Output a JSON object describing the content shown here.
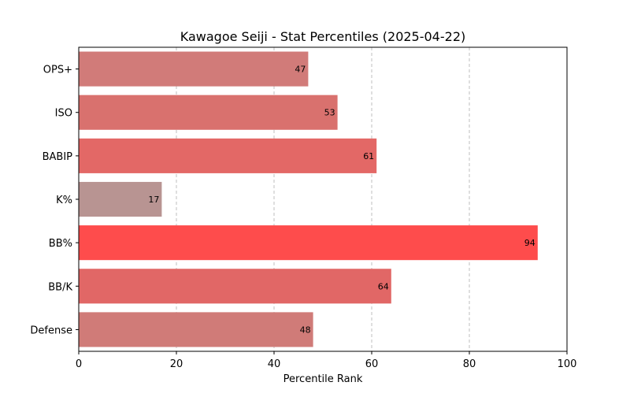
{
  "chart_data": {
    "type": "bar",
    "orientation": "horizontal",
    "title": "Kawagoe Seiji - Stat Percentiles (2025-04-22)",
    "xlabel": "Percentile Rank",
    "ylabel": "",
    "xlim": [
      0,
      100
    ],
    "xticks": [
      0,
      20,
      40,
      60,
      80,
      100
    ],
    "grid": "x",
    "categories": [
      "OPS+",
      "ISO",
      "BABIP",
      "K%",
      "BB%",
      "BB/K",
      "Defense"
    ],
    "values": [
      47,
      53,
      61,
      17,
      94,
      64,
      48
    ],
    "colors": [
      "#d17b79",
      "#d9716e",
      "#e36866",
      "#b89492",
      "#fe4c4c",
      "#e16766",
      "#d07b78"
    ]
  }
}
